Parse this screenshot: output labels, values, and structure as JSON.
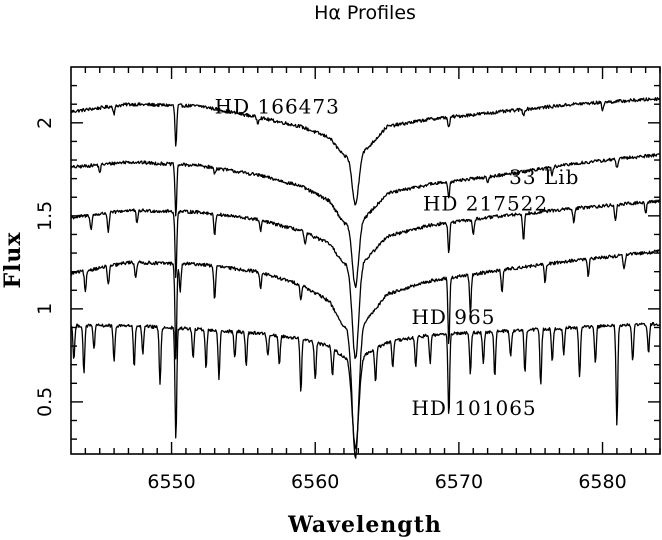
{
  "chart_data": {
    "type": "line",
    "title": "Hα Profiles",
    "xlabel": "Wavelength",
    "ylabel": "Flux",
    "xlim": [
      6543,
      6584
    ],
    "ylim": [
      0.22,
      2.3
    ],
    "x_ticks": [
      6550,
      6560,
      6570,
      6580
    ],
    "y_ticks": [
      0.5,
      1,
      1.5,
      2
    ],
    "x_tick_labels": [
      "6550",
      "6560",
      "6570",
      "6580"
    ],
    "y_tick_labels": [
      "0.5",
      "1",
      "1.5",
      "2"
    ],
    "grid": false,
    "legend": "none",
    "line_color": "#000000",
    "series": [
      {
        "name": "HD 166473",
        "label_position": [
          6553.0,
          2.05
        ],
        "continuum": [
          [
            6543,
            2.06
          ],
          [
            6547,
            2.1
          ],
          [
            6552,
            2.09
          ],
          [
            6556,
            2.03
          ],
          [
            6559,
            1.98
          ],
          [
            6561,
            1.92
          ],
          [
            6562,
            1.82
          ],
          [
            6563.6,
            1.86
          ],
          [
            6565,
            1.98
          ],
          [
            6568,
            2.02
          ],
          [
            6573,
            2.06
          ],
          [
            6578,
            2.1
          ],
          [
            6584,
            2.13
          ]
        ],
        "lines": [
          [
            6550.3,
            0.22
          ],
          [
            6562.8,
            0.28
          ],
          [
            6546.0,
            0.04
          ],
          [
            6556.0,
            0.03
          ],
          [
            6569.3,
            0.06
          ],
          [
            6574.5,
            0.03
          ],
          [
            6580.0,
            0.04
          ]
        ]
      },
      {
        "name": "33 Lib",
        "label_position": [
          6573.5,
          1.67
        ],
        "continuum": [
          [
            6543,
            1.76
          ],
          [
            6547,
            1.79
          ],
          [
            6552,
            1.77
          ],
          [
            6556,
            1.72
          ],
          [
            6559,
            1.66
          ],
          [
            6561,
            1.58
          ],
          [
            6562,
            1.46
          ],
          [
            6563.6,
            1.5
          ],
          [
            6565,
            1.62
          ],
          [
            6568,
            1.67
          ],
          [
            6573,
            1.72
          ],
          [
            6578,
            1.78
          ],
          [
            6584,
            1.83
          ]
        ],
        "lines": [
          [
            6550.3,
            0.28
          ],
          [
            6562.8,
            0.36
          ],
          [
            6545.0,
            0.04
          ],
          [
            6553.0,
            0.03
          ],
          [
            6569.3,
            0.08
          ],
          [
            6572.0,
            0.04
          ],
          [
            6576.5,
            0.04
          ],
          [
            6581.0,
            0.05
          ]
        ]
      },
      {
        "name": "HD 217522",
        "label_position": [
          6567.5,
          1.53
        ],
        "continuum": [
          [
            6543,
            1.49
          ],
          [
            6547,
            1.53
          ],
          [
            6552,
            1.52
          ],
          [
            6556,
            1.48
          ],
          [
            6559,
            1.42
          ],
          [
            6561,
            1.35
          ],
          [
            6562,
            1.24
          ],
          [
            6563.6,
            1.27
          ],
          [
            6565,
            1.39
          ],
          [
            6568,
            1.45
          ],
          [
            6573,
            1.5
          ],
          [
            6578,
            1.54
          ],
          [
            6584,
            1.58
          ]
        ],
        "lines": [
          [
            6550.3,
            0.36
          ],
          [
            6562.8,
            0.52
          ],
          [
            6544.4,
            0.08
          ],
          [
            6545.6,
            0.1
          ],
          [
            6547.6,
            0.07
          ],
          [
            6553.0,
            0.11
          ],
          [
            6556.2,
            0.06
          ],
          [
            6559.3,
            0.07
          ],
          [
            6569.3,
            0.16
          ],
          [
            6571.0,
            0.08
          ],
          [
            6574.5,
            0.15
          ],
          [
            6578.0,
            0.08
          ],
          [
            6580.9,
            0.09
          ],
          [
            6583.0,
            0.06
          ]
        ]
      },
      {
        "name": "HD 965",
        "label_position": [
          6566.7,
          0.92
        ],
        "continuum": [
          [
            6543,
            1.19
          ],
          [
            6547,
            1.25
          ],
          [
            6552,
            1.24
          ],
          [
            6556,
            1.2
          ],
          [
            6559,
            1.13
          ],
          [
            6561,
            1.04
          ],
          [
            6562,
            0.9
          ],
          [
            6563.6,
            0.94
          ],
          [
            6565,
            1.08
          ],
          [
            6568,
            1.15
          ],
          [
            6573,
            1.21
          ],
          [
            6578,
            1.26
          ],
          [
            6584,
            1.31
          ]
        ],
        "lines": [
          [
            6550.3,
            0.52
          ],
          [
            6562.8,
            0.72
          ],
          [
            6544.0,
            0.12
          ],
          [
            6545.6,
            0.1
          ],
          [
            6547.5,
            0.08
          ],
          [
            6550.6,
            0.15
          ],
          [
            6553.0,
            0.18
          ],
          [
            6556.2,
            0.08
          ],
          [
            6559.0,
            0.08
          ],
          [
            6569.3,
            0.36
          ],
          [
            6570.8,
            0.2
          ],
          [
            6573.0,
            0.12
          ],
          [
            6576.0,
            0.1
          ],
          [
            6579.0,
            0.09
          ],
          [
            6581.5,
            0.08
          ]
        ]
      },
      {
        "name": "HD 101065",
        "label_position": [
          6566.7,
          0.43
        ],
        "continuum": [
          [
            6543,
            0.91
          ],
          [
            6547,
            0.91
          ],
          [
            6552,
            0.89
          ],
          [
            6556,
            0.87
          ],
          [
            6559,
            0.84
          ],
          [
            6561,
            0.8
          ],
          [
            6562,
            0.74
          ],
          [
            6563.6,
            0.76
          ],
          [
            6565,
            0.82
          ],
          [
            6568,
            0.86
          ],
          [
            6573,
            0.88
          ],
          [
            6578,
            0.9
          ],
          [
            6584,
            0.92
          ]
        ],
        "lines": [
          [
            6550.3,
            0.6
          ],
          [
            6562.8,
            0.5
          ],
          [
            6543.2,
            0.18
          ],
          [
            6543.9,
            0.25
          ],
          [
            6544.6,
            0.12
          ],
          [
            6546.0,
            0.2
          ],
          [
            6547.4,
            0.22
          ],
          [
            6548.0,
            0.15
          ],
          [
            6549.2,
            0.3
          ],
          [
            6551.5,
            0.16
          ],
          [
            6552.4,
            0.2
          ],
          [
            6553.3,
            0.26
          ],
          [
            6554.4,
            0.14
          ],
          [
            6555.2,
            0.18
          ],
          [
            6556.7,
            0.12
          ],
          [
            6557.5,
            0.16
          ],
          [
            6559.0,
            0.28
          ],
          [
            6560.0,
            0.2
          ],
          [
            6561.2,
            0.15
          ],
          [
            6564.2,
            0.18
          ],
          [
            6565.4,
            0.14
          ],
          [
            6567.0,
            0.16
          ],
          [
            6568.0,
            0.15
          ],
          [
            6569.3,
            0.44
          ],
          [
            6570.8,
            0.22
          ],
          [
            6571.7,
            0.16
          ],
          [
            6572.5,
            0.24
          ],
          [
            6573.6,
            0.14
          ],
          [
            6574.6,
            0.22
          ],
          [
            6575.7,
            0.3
          ],
          [
            6576.5,
            0.18
          ],
          [
            6577.3,
            0.14
          ],
          [
            6578.4,
            0.26
          ],
          [
            6579.5,
            0.2
          ],
          [
            6581.0,
            0.54
          ],
          [
            6582.1,
            0.2
          ],
          [
            6583.2,
            0.16
          ]
        ]
      }
    ]
  }
}
